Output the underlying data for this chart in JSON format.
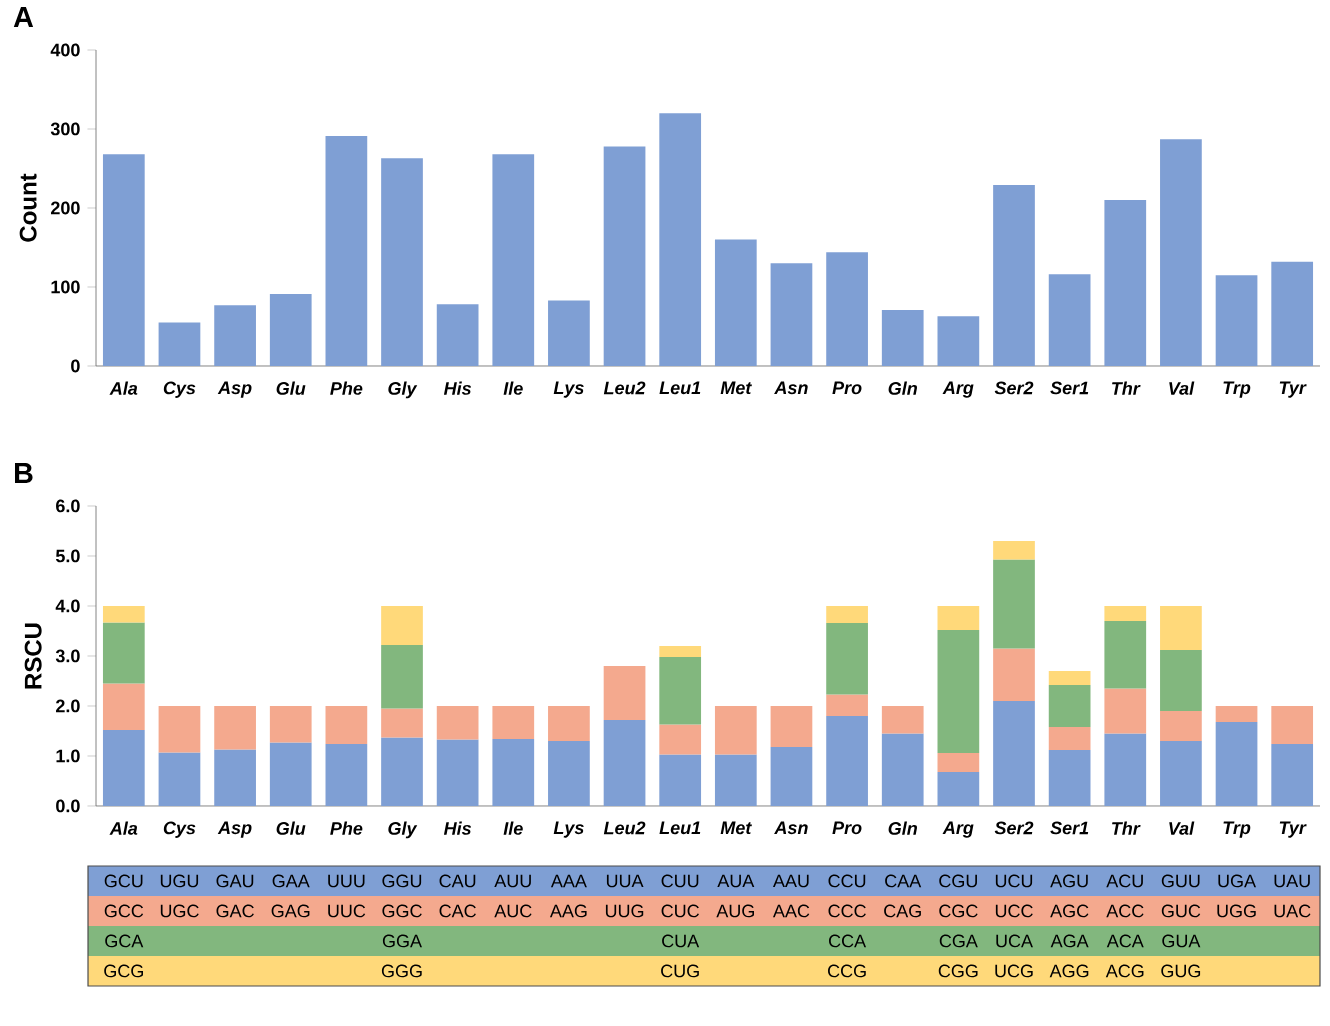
{
  "chart_data": [
    {
      "type": "bar",
      "title": "A",
      "ylabel": "Count",
      "categories": [
        "Ala",
        "Cys",
        "Asp",
        "Glu",
        "Phe",
        "Gly",
        "His",
        "Ile",
        "Lys",
        "Leu2",
        "Leu1",
        "Met",
        "Asn",
        "Pro",
        "Gln",
        "Arg",
        "Ser2",
        "Ser1",
        "Thr",
        "Val",
        "Trp",
        "Tyr"
      ],
      "values": [
        268,
        55,
        77,
        91,
        291,
        263,
        78,
        268,
        83,
        278,
        320,
        160,
        130,
        144,
        71,
        63,
        229,
        116,
        210,
        287,
        115,
        132
      ],
      "color": "#7f9fd4",
      "ylim": [
        0,
        400
      ],
      "yticks": [
        0,
        100,
        200,
        300,
        400
      ]
    },
    {
      "type": "bar",
      "title": "B",
      "ylabel": "RSCU",
      "stacked": true,
      "categories": [
        "Ala",
        "Cys",
        "Asp",
        "Glu",
        "Phe",
        "Gly",
        "His",
        "Ile",
        "Lys",
        "Leu2",
        "Leu1",
        "Met",
        "Asn",
        "Pro",
        "Gln",
        "Arg",
        "Ser2",
        "Ser1",
        "Thr",
        "Val",
        "Trp",
        "Tyr"
      ],
      "series": [
        {
          "color": "#7f9fd4",
          "values": [
            1.52,
            1.07,
            1.13,
            1.27,
            1.24,
            1.37,
            1.33,
            1.34,
            1.3,
            1.72,
            1.03,
            1.03,
            1.18,
            1.8,
            1.45,
            0.68,
            2.1,
            1.12,
            1.45,
            1.3,
            1.68,
            1.24
          ],
          "value_labels": [
            "GCU",
            "UGU",
            "GAU",
            "GAA",
            "UUU",
            "GGU",
            "CAU",
            "AUU",
            "AAA",
            "UUA",
            "CUU",
            "AUA",
            "AAU",
            "CCU",
            "CAA",
            "CGU",
            "UCU",
            "AGU",
            "ACU",
            "GUU",
            "UGA",
            "UAU"
          ]
        },
        {
          "color": "#f4a98e",
          "values": [
            0.93,
            0.93,
            0.87,
            0.73,
            0.76,
            0.58,
            0.67,
            0.66,
            0.7,
            1.08,
            0.6,
            0.97,
            0.82,
            0.43,
            0.55,
            0.38,
            1.05,
            0.46,
            0.9,
            0.6,
            0.32,
            0.76
          ],
          "value_labels": [
            "GCC",
            "UGC",
            "GAC",
            "GAG",
            "UUC",
            "GGC",
            "CAC",
            "AUC",
            "AAG",
            "UUG",
            "CUC",
            "AUG",
            "AAC",
            "CCC",
            "CAG",
            "CGC",
            "UCC",
            "AGC",
            "ACC",
            "GUC",
            "UGG",
            "UAC"
          ]
        },
        {
          "color": "#82b77e",
          "values": [
            1.22,
            null,
            null,
            null,
            null,
            1.27,
            null,
            null,
            null,
            null,
            1.35,
            null,
            null,
            1.43,
            null,
            2.46,
            1.78,
            0.84,
            1.35,
            1.22,
            null,
            null
          ],
          "value_labels": [
            "GCA",
            null,
            null,
            null,
            null,
            "GGA",
            null,
            null,
            null,
            null,
            "CUA",
            null,
            null,
            "CCA",
            null,
            "CGA",
            "UCA",
            "AGA",
            "ACA",
            "GUA",
            null,
            null
          ]
        },
        {
          "color": "#ffd97a",
          "values": [
            0.33,
            null,
            null,
            null,
            null,
            0.78,
            null,
            null,
            null,
            null,
            0.22,
            null,
            null,
            0.34,
            null,
            0.48,
            0.37,
            0.28,
            0.3,
            0.88,
            null,
            null
          ],
          "value_labels": [
            "GCG",
            null,
            null,
            null,
            null,
            "GGG",
            null,
            null,
            null,
            null,
            "CUG",
            null,
            null,
            "CCG",
            null,
            "CGG",
            "UCG",
            "AGG",
            "ACG",
            "GUG",
            null,
            null
          ]
        }
      ],
      "ylim": [
        0,
        6
      ],
      "yticks": [
        {
          "value": 0,
          "label": "0.0"
        },
        {
          "value": 1,
          "label": "1.0"
        },
        {
          "value": 2,
          "label": "2.0"
        },
        {
          "value": 3,
          "label": "3.0"
        },
        {
          "value": 4,
          "label": "4.0"
        },
        {
          "value": 5,
          "label": "5.0"
        },
        {
          "value": 6,
          "label": "6.0"
        }
      ]
    }
  ]
}
